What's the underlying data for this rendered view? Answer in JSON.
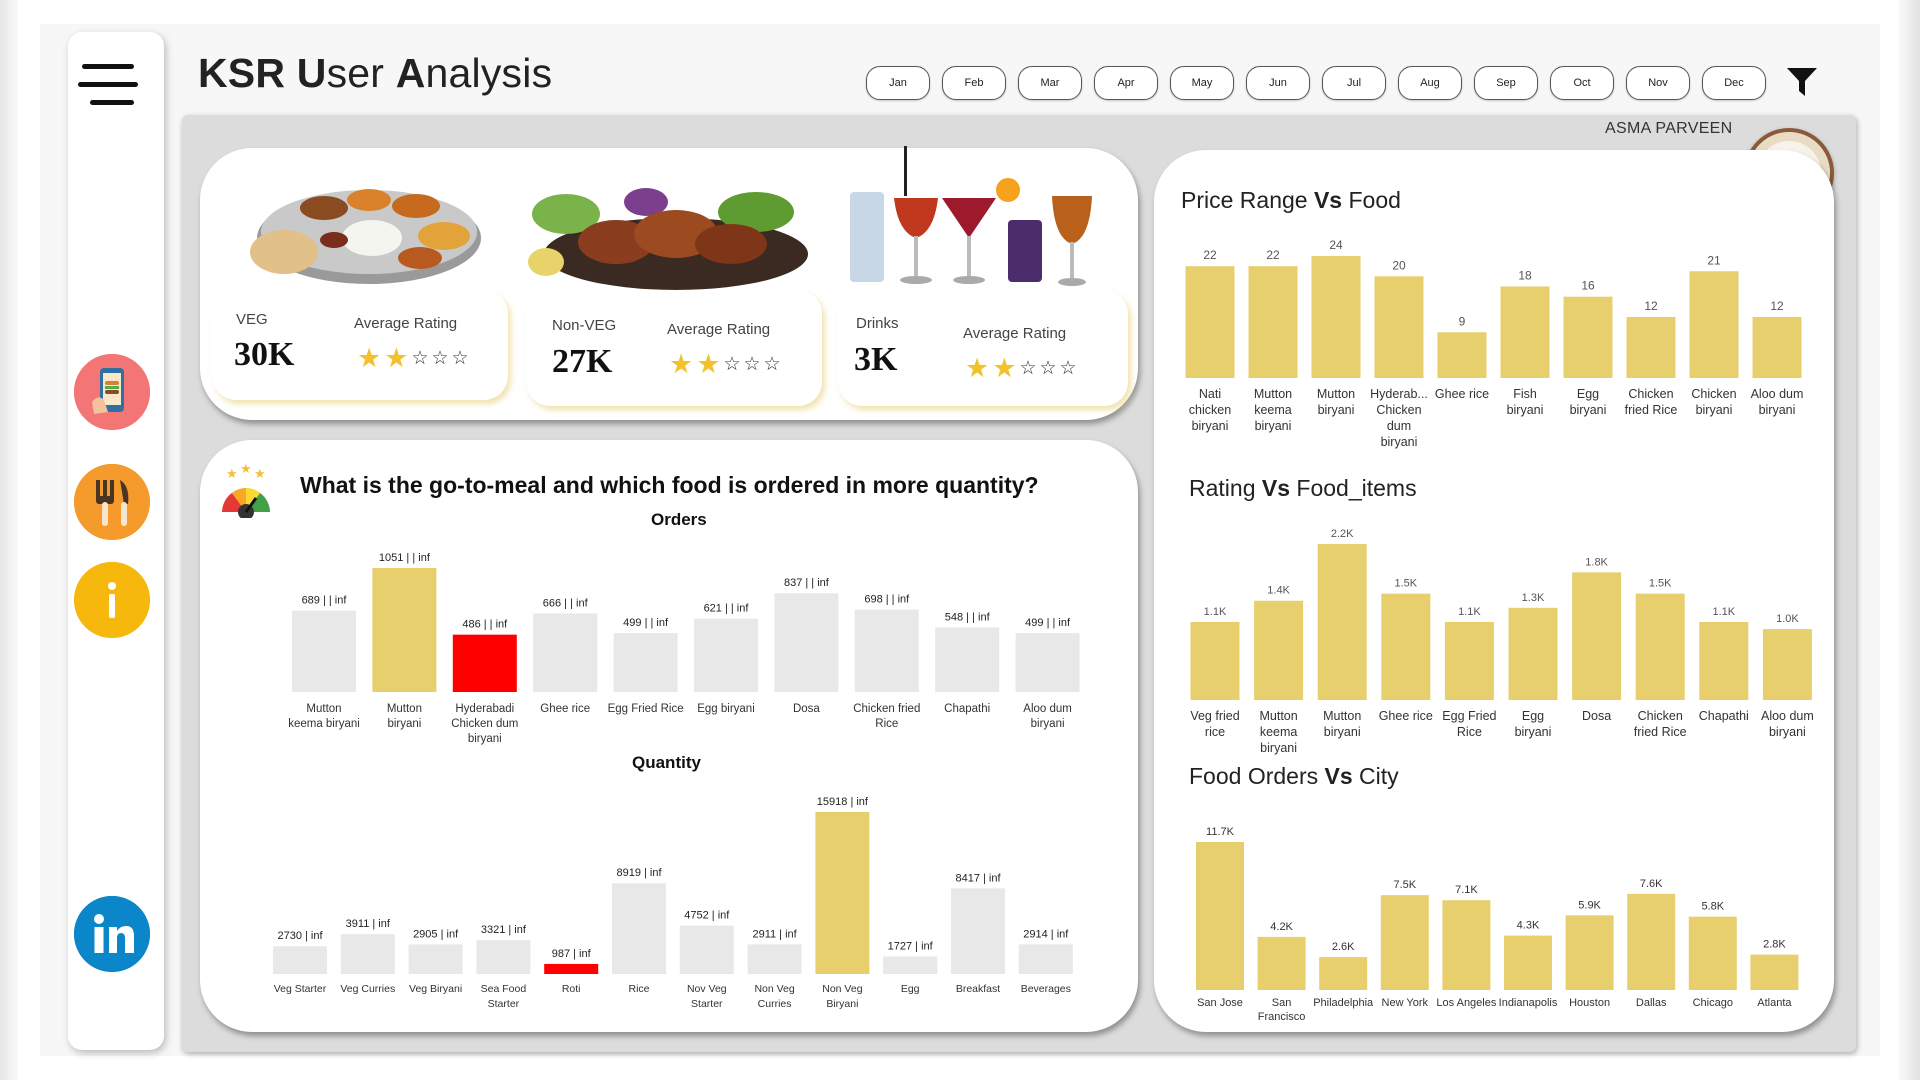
{
  "header": {
    "title_parts": [
      {
        "text": "KSR",
        "bold": true
      },
      {
        "text": " U",
        "bold": true
      },
      {
        "text": "ser ",
        "bold": false
      },
      {
        "text": "A",
        "bold": true
      },
      {
        "text": "nalysis",
        "bold": false
      }
    ],
    "months": [
      "Jan",
      "Feb",
      "Mar",
      "Apr",
      "May",
      "Jun",
      "Jul",
      "Aug",
      "Sep",
      "Oct",
      "Nov",
      "Dec"
    ],
    "author": "ASMA PARVEEN"
  },
  "colors": {
    "accent": "#e8cf6e",
    "highlight_red": "#ff0000",
    "bar_grey": "#e8e8e8",
    "background": "#f7f7f7",
    "panel": "#dcdcdc",
    "star": "#f2c12e"
  },
  "sidebar": {
    "icons": [
      "menu-icon",
      "mobile-food-order-icon",
      "fork-knife-icon",
      "info-icon",
      "linkedin-icon"
    ]
  },
  "kpis": [
    {
      "label": "VEG",
      "value": "30K",
      "rating_label": "Average Rating",
      "stars_filled": 2,
      "stars_total": 5
    },
    {
      "label": "Non-VEG",
      "value": "27K",
      "rating_label": "Average Rating",
      "stars_filled": 2,
      "stars_total": 5
    },
    {
      "label": "Drinks",
      "value": "3K",
      "rating_label": "Average Rating",
      "stars_filled": 2,
      "stars_total": 5
    }
  ],
  "question": {
    "text": "What is the go-to-meal and which food is ordered in more quantity?",
    "orders_title": "Orders",
    "quantity_title": "Quantity"
  },
  "chart_data": [
    {
      "id": "orders",
      "type": "bar",
      "title": "Orders",
      "categories": [
        "Mutton keema biryani",
        "Mutton biryani",
        "Hyderabadi Chicken dum biryani",
        "Ghee rice",
        "Egg Fried Rice",
        "Egg biryani",
        "Dosa",
        "Chicken fried Rice",
        "Chapathi",
        "Aloo dum biryani"
      ],
      "category_lines": [
        [
          "Mutton",
          "keema biryani"
        ],
        [
          "Mutton",
          "biryani"
        ],
        [
          "Hyderabadi",
          "Chicken dum",
          "biryani"
        ],
        [
          "Ghee rice"
        ],
        [
          "Egg Fried Rice"
        ],
        [
          "Egg biryani"
        ],
        [
          "Dosa"
        ],
        [
          "Chicken fried",
          "Rice"
        ],
        [
          "Chapathi"
        ],
        [
          "Aloo dum",
          "biryani"
        ]
      ],
      "values": [
        689,
        1051,
        486,
        666,
        499,
        621,
        837,
        698,
        548,
        499
      ],
      "data_labels": [
        "689 | | inf",
        "1051 | | inf",
        "486 | | inf",
        "666 | | inf",
        "499 | | inf",
        "621 | | inf",
        "837 | | inf",
        "698 | | inf",
        "548 | | inf",
        "499 | | inf"
      ],
      "bar_colors": [
        "#e8e8e8",
        "#e8cf6e",
        "#ff0000",
        "#e8e8e8",
        "#e8e8e8",
        "#e8e8e8",
        "#e8e8e8",
        "#e8e8e8",
        "#e8e8e8",
        "#e8e8e8"
      ]
    },
    {
      "id": "quantity",
      "type": "bar",
      "title": "Quantity",
      "categories": [
        "Veg Starter",
        "Veg Curries",
        "Veg Biryani",
        "Sea Food Starter",
        "Roti",
        "Rice",
        "Nov Veg Starter",
        "Non Veg Curries",
        "Non Veg Biryani",
        "Egg",
        "Breakfast",
        "Beverages"
      ],
      "category_lines": [
        [
          "Veg Starter"
        ],
        [
          "Veg Curries"
        ],
        [
          "Veg Biryani"
        ],
        [
          "Sea Food",
          "Starter"
        ],
        [
          "Roti"
        ],
        [
          "Rice"
        ],
        [
          "Nov Veg",
          "Starter"
        ],
        [
          "Non Veg",
          "Curries"
        ],
        [
          "Non Veg",
          "Biryani"
        ],
        [
          "Egg"
        ],
        [
          "Breakfast"
        ],
        [
          "Beverages"
        ]
      ],
      "values": [
        2730,
        3911,
        2905,
        3321,
        987,
        8919,
        4752,
        2911,
        15918,
        1727,
        8417,
        2914
      ],
      "data_labels": [
        "2730 | inf",
        "3911 | inf",
        "2905 | inf",
        "3321 | inf",
        "987 | inf",
        "8919 | inf",
        "4752 | inf",
        "2911 | inf",
        "15918 | inf",
        "1727 | inf",
        "8417 | inf",
        "2914 | inf"
      ],
      "bar_colors": [
        "#e8e8e8",
        "#e8e8e8",
        "#e8e8e8",
        "#e8e8e8",
        "#ff0000",
        "#e8e8e8",
        "#e8e8e8",
        "#e8e8e8",
        "#e8cf6e",
        "#e8e8e8",
        "#e8e8e8",
        "#e8e8e8"
      ]
    },
    {
      "id": "price",
      "type": "bar",
      "title_parts": [
        {
          "text": "Price Range ",
          "bold": false
        },
        {
          "text": "Vs",
          "bold": true
        },
        {
          "text": " Food",
          "bold": false
        }
      ],
      "categories": [
        "Nati chicken biryani",
        "Mutton keema biryani",
        "Mutton biryani",
        "Hyderab... Chicken dum biryani",
        "Ghee rice",
        "Fish biryani",
        "Egg biryani",
        "Chicken fried Rice",
        "Chicken biryani",
        "Aloo dum biryani"
      ],
      "category_lines": [
        [
          "Nati",
          "chicken",
          "biryani"
        ],
        [
          "Mutton",
          "keema",
          "biryani"
        ],
        [
          "Mutton",
          "biryani"
        ],
        [
          "Hyderab...",
          "Chicken",
          "dum",
          "biryani"
        ],
        [
          "Ghee rice"
        ],
        [
          "Fish",
          "biryani"
        ],
        [
          "Egg",
          "biryani"
        ],
        [
          "Chicken",
          "fried Rice"
        ],
        [
          "Chicken",
          "biryani"
        ],
        [
          "Aloo dum",
          "biryani"
        ]
      ],
      "values": [
        22,
        22,
        24,
        20,
        9,
        18,
        16,
        12,
        21,
        12
      ],
      "data_labels": [
        "22",
        "22",
        "24",
        "20",
        "9",
        "18",
        "16",
        "12",
        "21",
        "12"
      ]
    },
    {
      "id": "rating",
      "type": "bar",
      "title_parts": [
        {
          "text": "Rating ",
          "bold": false
        },
        {
          "text": "Vs",
          "bold": true
        },
        {
          "text": " Food_items",
          "bold": false
        }
      ],
      "categories": [
        "Veg fried rice",
        "Mutton keema biryani",
        "Mutton biryani",
        "Ghee rice",
        "Egg Fried Rice",
        "Egg biryani",
        "Dosa",
        "Chicken fried Rice",
        "Chapathi",
        "Aloo dum biryani"
      ],
      "category_lines": [
        [
          "Veg fried",
          "rice"
        ],
        [
          "Mutton",
          "keema",
          "biryani"
        ],
        [
          "Mutton",
          "biryani"
        ],
        [
          "Ghee rice"
        ],
        [
          "Egg Fried",
          "Rice"
        ],
        [
          "Egg",
          "biryani"
        ],
        [
          "Dosa"
        ],
        [
          "Chicken",
          "fried Rice"
        ],
        [
          "Chapathi"
        ],
        [
          "Aloo dum",
          "biryani"
        ]
      ],
      "values": [
        1100,
        1400,
        2200,
        1500,
        1100,
        1300,
        1800,
        1500,
        1100,
        1000
      ],
      "data_labels": [
        "1.1K",
        "1.4K",
        "2.2K",
        "1.5K",
        "1.1K",
        "1.3K",
        "1.8K",
        "1.5K",
        "1.1K",
        "1.0K"
      ]
    },
    {
      "id": "city",
      "type": "bar",
      "title_parts": [
        {
          "text": "Food Orders ",
          "bold": false
        },
        {
          "text": "Vs",
          "bold": true
        },
        {
          "text": " City",
          "bold": false
        }
      ],
      "categories": [
        "San Jose",
        "San Francisco",
        "Philadelphia",
        "New York",
        "Los Angeles",
        "Indianapolis",
        "Houston",
        "Dallas",
        "Chicago",
        "Atlanta"
      ],
      "category_lines": [
        [
          "San Jose"
        ],
        [
          "San",
          "Francisco"
        ],
        [
          "Philadelphia"
        ],
        [
          "New York"
        ],
        [
          "Los Angeles"
        ],
        [
          "Indianapolis"
        ],
        [
          "Houston"
        ],
        [
          "Dallas"
        ],
        [
          "Chicago"
        ],
        [
          "Atlanta"
        ]
      ],
      "values": [
        11700,
        4200,
        2600,
        7500,
        7100,
        4300,
        5900,
        7600,
        5800,
        2800
      ],
      "data_labels": [
        "11.7K",
        "4.2K",
        "2.6K",
        "7.5K",
        "7.1K",
        "4.3K",
        "5.9K",
        "7.6K",
        "5.8K",
        "2.8K"
      ]
    }
  ]
}
